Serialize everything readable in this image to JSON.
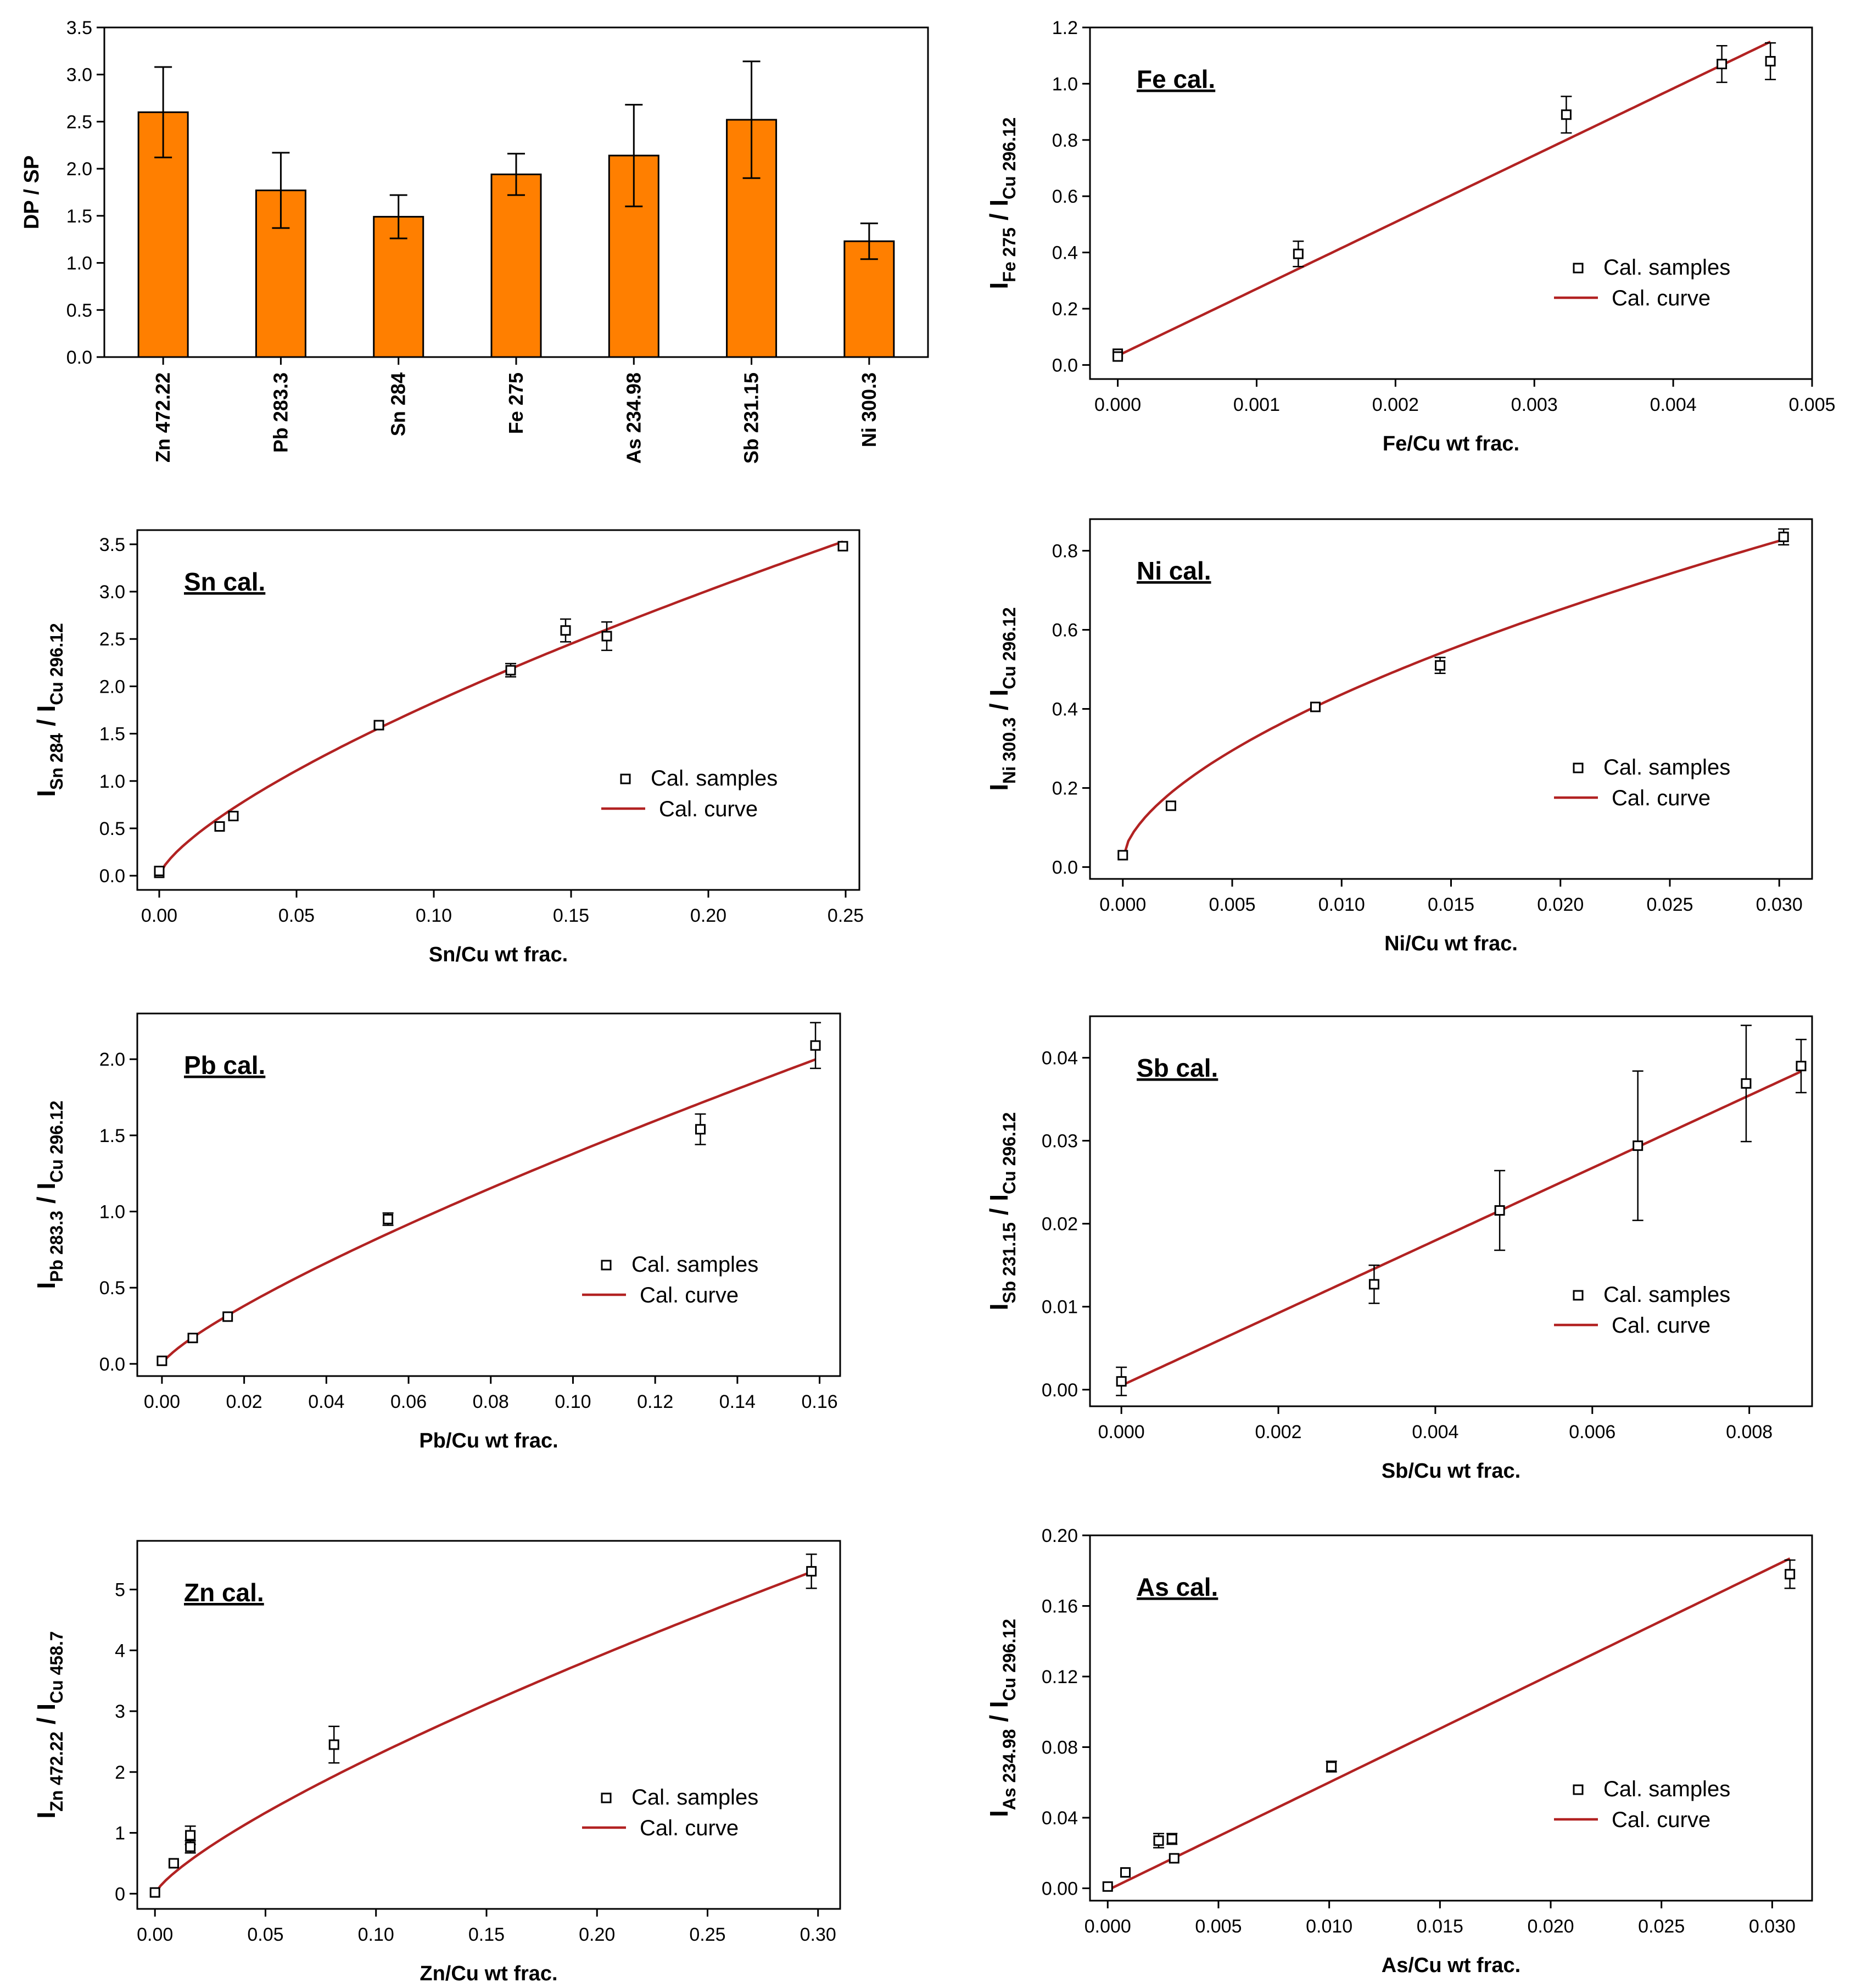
{
  "colors": {
    "bar_fill": "#ff7f00",
    "curve": "#b22222",
    "marker": "#000000"
  },
  "legend": {
    "samples": "Cal. samples",
    "curve": "Cal. curve"
  },
  "chart_data": [
    {
      "id": "dpsp",
      "type": "bar",
      "title": "",
      "ylabel": "DP / SP",
      "ylim": [
        0,
        3.5
      ],
      "yticks": [
        "0.0",
        "0.5",
        "1.0",
        "1.5",
        "2.0",
        "2.5",
        "3.0",
        "3.5"
      ],
      "categories": [
        "Zn 472.22",
        "Pb 283.3",
        "Sn 284",
        "Fe 275",
        "As 234.98",
        "Sb 231.15",
        "Ni 300.3"
      ],
      "values": [
        2.6,
        1.77,
        1.49,
        1.94,
        2.14,
        2.52,
        1.23
      ],
      "errors": [
        0.48,
        0.4,
        0.23,
        0.22,
        0.54,
        0.62,
        0.19
      ]
    },
    {
      "id": "fe",
      "type": "scatter",
      "title": "Fe  cal.",
      "xlabel": "Fe/Cu  wt frac.",
      "ylabel_main": "I",
      "ylabel_sub1": "Fe 275",
      "ylabel_mid": " / I",
      "ylabel_sub2": "Cu 296.12",
      "xlim": [
        -0.0002,
        0.005
      ],
      "ylim": [
        -0.05,
        1.2
      ],
      "xticks": [
        "0.000",
        "0.001",
        "0.002",
        "0.003",
        "0.004",
        "0.005"
      ],
      "yticks": [
        "0.0",
        "0.2",
        "0.4",
        "0.6",
        "0.8",
        "1.0",
        "1.2"
      ],
      "x": [
        0,
        0,
        0.0013,
        0.00323,
        0.00435,
        0.0047
      ],
      "y": [
        0.04,
        0.03,
        0.395,
        0.89,
        1.07,
        1.08
      ],
      "err": [
        0.01,
        0.01,
        0.045,
        0.065,
        0.065,
        0.065
      ],
      "curve": {
        "a": 0.033,
        "b": 237.5,
        "p": 1,
        "x_end": 0.0047
      }
    },
    {
      "id": "sn",
      "type": "scatter",
      "title": "Sn  cal.",
      "xlabel": "Sn/Cu  wt frac.",
      "ylabel_main": "I",
      "ylabel_sub1": "Sn 284",
      "ylabel_mid": " / I",
      "ylabel_sub2": "Cu 296.12",
      "xlim": [
        -0.008,
        0.255
      ],
      "ylim": [
        -0.15,
        3.65
      ],
      "xticks": [
        "0.00",
        "0.05",
        "0.10",
        "0.15",
        "0.20",
        "0.25"
      ],
      "yticks": [
        "0.0",
        "0.5",
        "1.0",
        "1.5",
        "2.0",
        "2.5",
        "3.0",
        "3.5"
      ],
      "x": [
        0,
        0,
        0.022,
        0.027,
        0.08,
        0.128,
        0.148,
        0.163,
        0.249
      ],
      "y": [
        0.03,
        0.05,
        0.52,
        0.63,
        1.59,
        2.17,
        2.59,
        2.53,
        3.48
      ],
      "err": [
        0.02,
        0.02,
        0.03,
        0.03,
        0.03,
        0.07,
        0.12,
        0.15,
        0.05
      ],
      "curve": {
        "a": 0.0,
        "b": 9.6,
        "p": 0.72,
        "x_end": 0.249
      }
    },
    {
      "id": "ni",
      "type": "scatter",
      "title": "Ni  cal.",
      "xlabel": "Ni/Cu  wt frac.",
      "ylabel_main": "I",
      "ylabel_sub1": "Ni 300.3",
      "ylabel_mid": " / I",
      "ylabel_sub2": "Cu 296.12",
      "xlim": [
        -0.0015,
        0.0315
      ],
      "ylim": [
        -0.03,
        0.88
      ],
      "xticks": [
        "0.000",
        "0.005",
        "0.010",
        "0.015",
        "0.020",
        "0.025",
        "0.030"
      ],
      "yticks": [
        "0.0",
        "0.2",
        "0.4",
        "0.6",
        "0.8"
      ],
      "x": [
        0,
        0.0022,
        0.0088,
        0.0145,
        0.0302
      ],
      "y": [
        0.03,
        0.155,
        0.405,
        0.51,
        0.835
      ],
      "err": [
        0.005,
        0.005,
        0.01,
        0.02,
        0.02
      ],
      "curve": {
        "a": 0.02,
        "b": 6.6,
        "p": 0.6,
        "x_end": 0.0302
      }
    },
    {
      "id": "pb",
      "type": "scatter",
      "title": "Pb  cal.",
      "xlabel": "Pb/Cu  wt frac.",
      "ylabel_main": "I",
      "ylabel_sub1": "Pb 283.3",
      "ylabel_mid": " / I",
      "ylabel_sub2": "Cu 296.12",
      "xlim": [
        -0.006,
        0.165
      ],
      "ylim": [
        -0.08,
        2.3
      ],
      "xticks": [
        "0.00",
        "0.02",
        "0.04",
        "0.06",
        "0.08",
        "0.10",
        "0.12",
        "0.14",
        "0.16"
      ],
      "yticks": [
        "0.0",
        "0.5",
        "1.0",
        "1.5",
        "2.0"
      ],
      "x": [
        0,
        0.0075,
        0.016,
        0.055,
        0.131,
        0.159
      ],
      "y": [
        0.02,
        0.17,
        0.31,
        0.95,
        1.54,
        2.09
      ],
      "err": [
        0.01,
        0.01,
        0.02,
        0.04,
        0.1,
        0.15
      ],
      "curve": {
        "a": 0.0,
        "b": 8.7,
        "p": 0.8,
        "x_end": 0.159
      }
    },
    {
      "id": "sb",
      "type": "scatter",
      "title": "Sb  cal.",
      "xlabel": "Sb/Cu  wt frac.",
      "ylabel_main": "I",
      "ylabel_sub1": "Sb 231.15",
      "ylabel_mid": " / I",
      "ylabel_sub2": "Cu 296.12",
      "xlim": [
        -0.0004,
        0.0088
      ],
      "ylim": [
        -0.002,
        0.045
      ],
      "xticks": [
        "0.000",
        "0.002",
        "0.004",
        "0.006",
        "0.008"
      ],
      "yticks": [
        "0.00",
        "0.01",
        "0.02",
        "0.03",
        "0.04"
      ],
      "x": [
        0,
        0.00322,
        0.00482,
        0.00658,
        0.00796,
        0.00866
      ],
      "y": [
        0.001,
        0.0127,
        0.0216,
        0.0294,
        0.0369,
        0.039
      ],
      "err": [
        0.0017,
        0.0023,
        0.0048,
        0.009,
        0.007,
        0.0032
      ],
      "curve": {
        "a": 0.0005,
        "b": 4.37,
        "p": 1,
        "x_end": 0.00866
      }
    },
    {
      "id": "zn",
      "type": "scatter",
      "title": "Zn  cal.",
      "xlabel": "Zn/Cu  wt frac.",
      "ylabel_main": "I",
      "ylabel_sub1": "Zn 472.22",
      "ylabel_mid": " / I",
      "ylabel_sub2": "Cu 458.7",
      "xlim": [
        -0.008,
        0.31
      ],
      "ylim": [
        -0.25,
        5.8
      ],
      "xticks": [
        "0.00",
        "0.05",
        "0.10",
        "0.15",
        "0.20",
        "0.25",
        "0.30"
      ],
      "yticks": [
        "0",
        "1",
        "2",
        "3",
        "4",
        "5"
      ],
      "x": [
        0,
        0.0085,
        0.016,
        0.016,
        0.081,
        0.297
      ],
      "y": [
        0.02,
        0.5,
        0.96,
        0.77,
        2.45,
        5.3
      ],
      "err": [
        0.02,
        0.03,
        0.15,
        0.1,
        0.3,
        0.28
      ],
      "curve": {
        "a": 0.0,
        "b": 13.55,
        "p": 0.775,
        "x_end": 0.297
      }
    },
    {
      "id": "as",
      "type": "scatter",
      "title": "As  cal.",
      "xlabel": "As/Cu  wt frac.",
      "ylabel_main": "I",
      "ylabel_sub1": "As 234.98",
      "ylabel_mid": " / I",
      "ylabel_sub2": "Cu 296.12",
      "xlim": [
        -0.0008,
        0.0318
      ],
      "ylim": [
        -0.007,
        0.2
      ],
      "xticks": [
        "0.000",
        "0.005",
        "0.010",
        "0.015",
        "0.020",
        "0.025",
        "0.030"
      ],
      "yticks": [
        "0.00",
        "0.04",
        "0.08",
        "0.12",
        "0.16",
        "0.20"
      ],
      "x": [
        0,
        0.0008,
        0.0023,
        0.0029,
        0.003,
        0.0101,
        0.0308
      ],
      "y": [
        0.001,
        0.009,
        0.027,
        0.028,
        0.017,
        0.069,
        0.178
      ],
      "err": [
        0.002,
        0.002,
        0.004,
        0.003,
        0.002,
        0.003,
        0.008
      ],
      "curve": {
        "a": -0.001,
        "b": 6.1,
        "p": 1,
        "x_end": 0.0308
      }
    }
  ]
}
